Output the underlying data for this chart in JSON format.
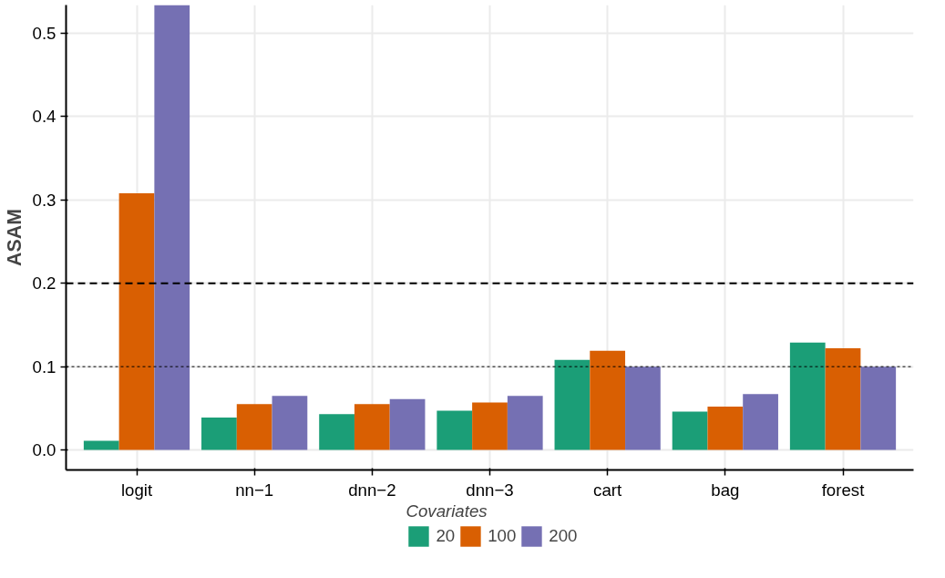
{
  "chart_data": {
    "type": "bar",
    "ylabel": "ASAM",
    "legend_title": "Covariates",
    "categories": [
      "logit",
      "nn−1",
      "dnn−2",
      "dnn−3",
      "cart",
      "bag",
      "forest"
    ],
    "series": [
      {
        "name": "20",
        "color": "#1b9e77",
        "values": [
          0.011,
          0.039,
          0.043,
          0.047,
          0.108,
          0.046,
          0.129
        ]
      },
      {
        "name": "100",
        "color": "#d95f02",
        "values": [
          0.308,
          0.055,
          0.055,
          0.057,
          0.119,
          0.052,
          0.122
        ]
      },
      {
        "name": "200",
        "color": "#7570b3",
        "values": [
          0.534,
          0.065,
          0.061,
          0.065,
          0.1,
          0.067,
          0.1
        ]
      }
    ],
    "ylim": [
      -0.024,
      0.534
    ],
    "yticks": [
      {
        "value": 0,
        "label": "0.0"
      },
      0.1,
      0.2,
      0.3,
      0.4,
      0.5
    ],
    "ref_lines": [
      {
        "axis": "y",
        "value": 0.2,
        "label": null,
        "line_style": "dashed",
        "color": "#000000"
      },
      {
        "axis": "y",
        "value": 0.1,
        "label": null,
        "line_style": "dotted",
        "color": "#000000"
      }
    ],
    "grid": true,
    "legend": "bottom"
  }
}
